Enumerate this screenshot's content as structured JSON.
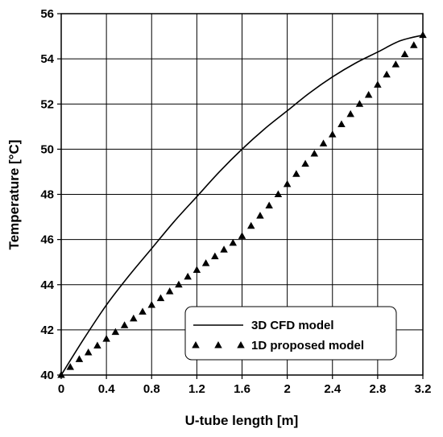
{
  "chart_data": {
    "type": "line",
    "xlabel": "U-tube length [m]",
    "ylabel": "Temperature [°C]",
    "xlim": [
      0,
      3.2
    ],
    "ylim": [
      40,
      56
    ],
    "x_ticks": [
      "0",
      "0.4",
      "0.8",
      "1.2",
      "1.6",
      "2",
      "2.4",
      "2.8",
      "3.2"
    ],
    "y_ticks": [
      "40",
      "42",
      "44",
      "46",
      "48",
      "50",
      "52",
      "54",
      "56"
    ],
    "grid": true,
    "legend_position": "bottom-right",
    "series": [
      {
        "name": "3D CFD model",
        "style": "solid line",
        "color": "#000000",
        "x": [
          0,
          0.2,
          0.4,
          0.6,
          0.8,
          1.0,
          1.2,
          1.4,
          1.6,
          1.8,
          2.0,
          2.2,
          2.4,
          2.6,
          2.8,
          3.0,
          3.2
        ],
        "y": [
          40.0,
          41.6,
          43.1,
          44.4,
          45.6,
          46.8,
          47.9,
          49.0,
          50.0,
          50.9,
          51.7,
          52.5,
          53.2,
          53.8,
          54.3,
          54.8,
          55.05
        ]
      },
      {
        "name": "1D proposed model",
        "style": "triangle markers",
        "color": "#000000",
        "x": [
          0,
          0.08,
          0.16,
          0.24,
          0.32,
          0.4,
          0.48,
          0.56,
          0.64,
          0.72,
          0.8,
          0.88,
          0.96,
          1.04,
          1.12,
          1.2,
          1.28,
          1.36,
          1.44,
          1.52,
          1.6,
          1.68,
          1.76,
          1.84,
          1.92,
          2.0,
          2.08,
          2.16,
          2.24,
          2.32,
          2.4,
          2.48,
          2.56,
          2.64,
          2.72,
          2.8,
          2.88,
          2.96,
          3.04,
          3.12,
          3.2
        ],
        "y": [
          40.0,
          40.35,
          40.7,
          41.0,
          41.3,
          41.6,
          41.9,
          42.2,
          42.5,
          42.8,
          43.1,
          43.4,
          43.7,
          44.0,
          44.35,
          44.65,
          44.95,
          45.25,
          45.55,
          45.85,
          46.15,
          46.6,
          47.05,
          47.5,
          48.0,
          48.45,
          48.9,
          49.35,
          49.8,
          50.25,
          50.65,
          51.1,
          51.55,
          52.0,
          52.4,
          52.85,
          53.3,
          53.75,
          54.2,
          54.6,
          55.05
        ]
      }
    ]
  }
}
